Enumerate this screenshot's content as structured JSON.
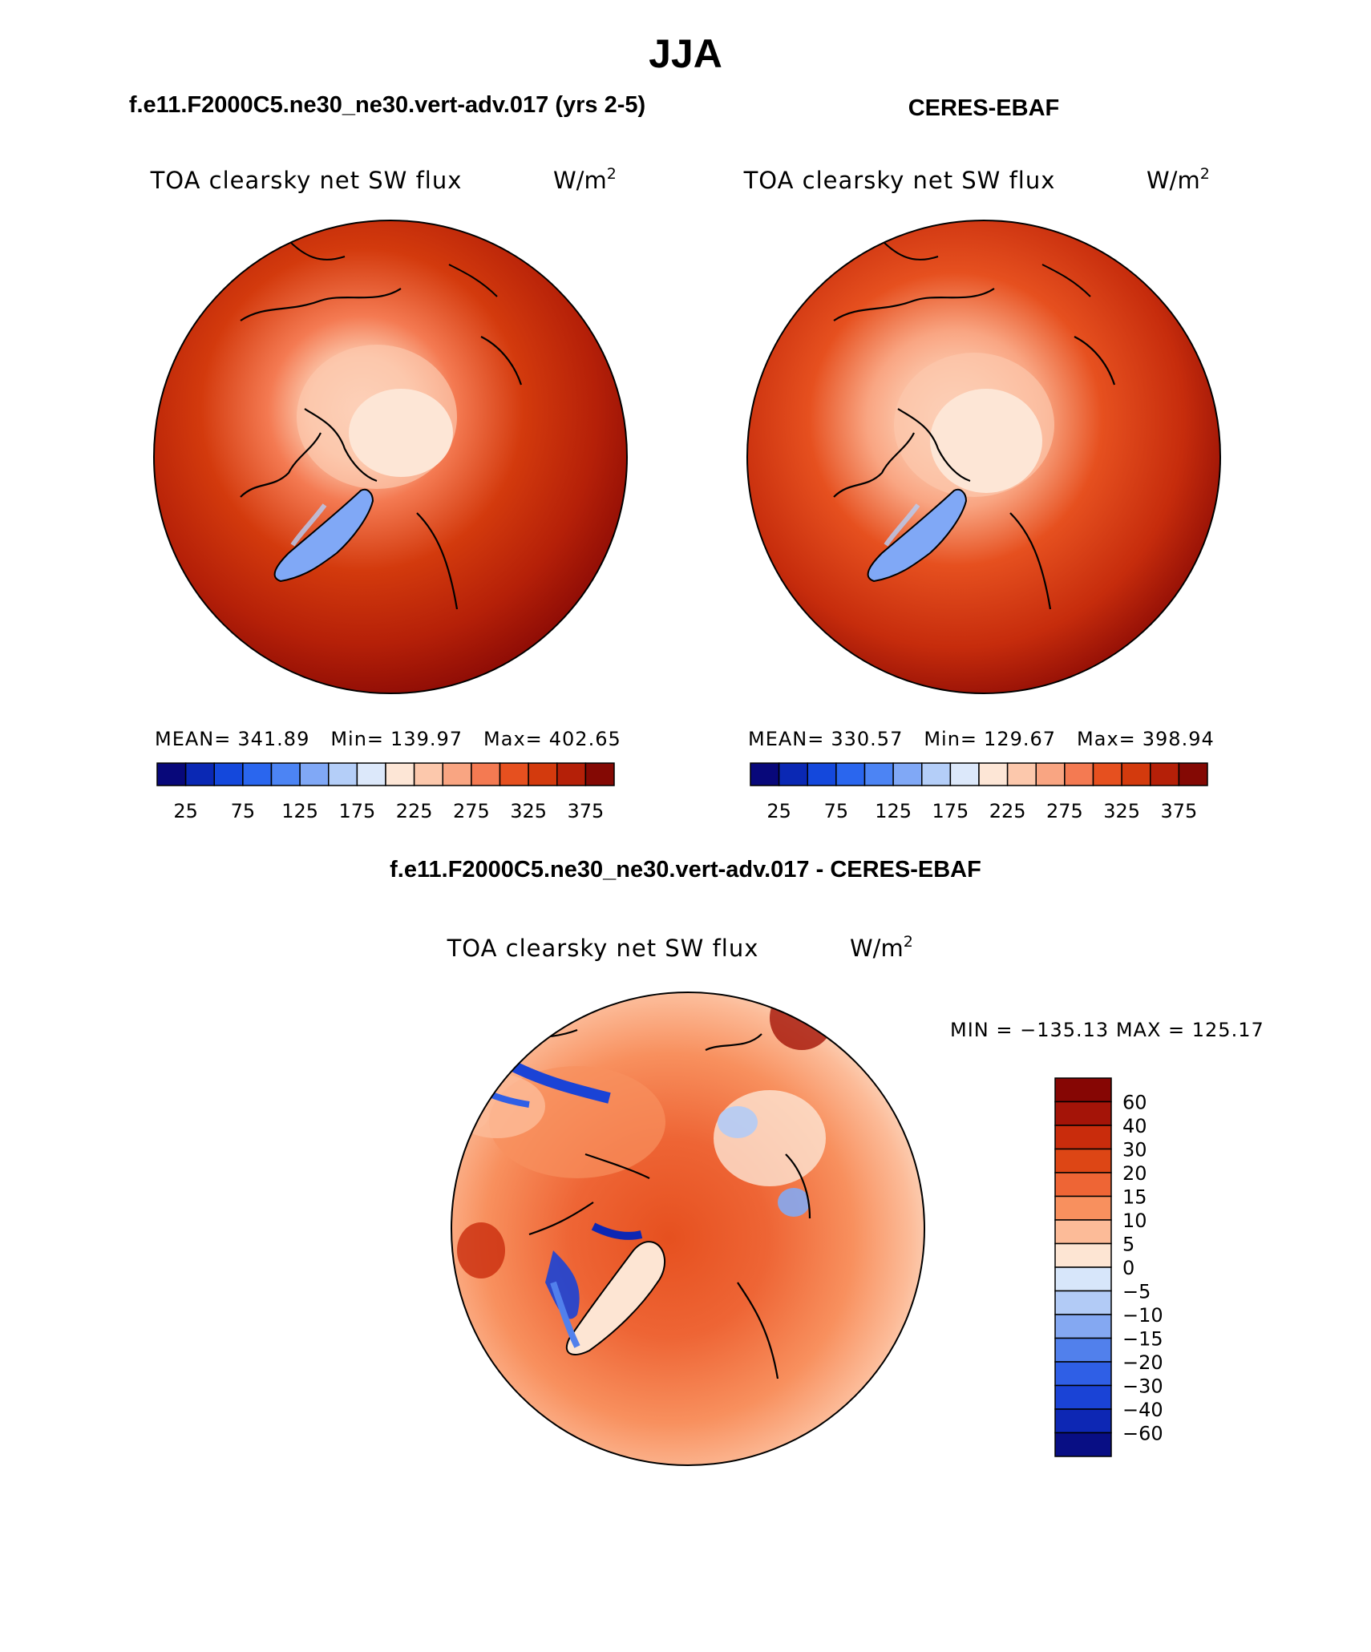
{
  "figure_title": "JJA",
  "chart_data": [
    {
      "type": "heatmap",
      "projection": "north-polar-stereographic",
      "panel_title": "f.e11.F2000C5.ne30_ne30.vert-adv.017 (yrs 2-5)",
      "variable": "TOA clearsky net SW flux",
      "units_base": "W/m",
      "units_exp": "2",
      "stats": {
        "mean_label": "MEAN=",
        "mean": "341.89",
        "min_label": "Min=",
        "min": "139.97",
        "max_label": "Max=",
        "max": "402.65"
      },
      "colorbar": {
        "orientation": "horizontal",
        "levels": [
          25,
          50,
          75,
          100,
          125,
          150,
          175,
          200,
          225,
          250,
          275,
          300,
          325,
          350,
          375
        ],
        "tick_labels": [
          "25",
          "75",
          "125",
          "175",
          "225",
          "275",
          "325",
          "375"
        ]
      }
    },
    {
      "type": "heatmap",
      "projection": "north-polar-stereographic",
      "panel_title": "CERES-EBAF",
      "variable": "TOA clearsky net SW flux",
      "units_base": "W/m",
      "units_exp": "2",
      "stats": {
        "mean_label": "MEAN=",
        "mean": "330.57",
        "min_label": "Min=",
        "min": "129.67",
        "max_label": "Max=",
        "max": "398.94"
      },
      "colorbar": {
        "orientation": "horizontal",
        "levels": [
          25,
          50,
          75,
          100,
          125,
          150,
          175,
          200,
          225,
          250,
          275,
          300,
          325,
          350,
          375
        ],
        "tick_labels": [
          "25",
          "75",
          "125",
          "175",
          "225",
          "275",
          "325",
          "375"
        ]
      }
    },
    {
      "type": "heatmap",
      "projection": "north-polar-stereographic",
      "panel_title": "f.e11.F2000C5.ne30_ne30.vert-adv.017 - CERES-EBAF",
      "variable": "TOA clearsky net SW flux",
      "units_base": "W/m",
      "units_exp": "2",
      "stats_text": "MIN = −135.13 MAX = 125.17",
      "stats": {
        "min": -135.13,
        "max": 125.17
      },
      "colorbar": {
        "orientation": "vertical",
        "levels": [
          60,
          40,
          30,
          20,
          15,
          10,
          5,
          0,
          -5,
          -10,
          -15,
          -20,
          -30,
          -40,
          -60
        ],
        "tick_labels": [
          "60",
          "40",
          "30",
          "20",
          "15",
          "10",
          "5",
          "0",
          "−5",
          "−10",
          "−15",
          "−20",
          "−30",
          "−40",
          "−60"
        ]
      }
    }
  ],
  "palettes": {
    "absolute": [
      "#08087a",
      "#0a28b4",
      "#1448dc",
      "#2a66ee",
      "#4c84f4",
      "#80a8f6",
      "#b4cef8",
      "#dce8fa",
      "#fde6d6",
      "#fcc8ac",
      "#f9a582",
      "#f47a52",
      "#e6501f",
      "#d33a0d",
      "#b52008",
      "#840904"
    ],
    "difference": [
      "#860604",
      "#a41408",
      "#c92c0c",
      "#dd4615",
      "#ee6535",
      "#f8905e",
      "#fcbb98",
      "#fde5d3",
      "#d7e6fa",
      "#b2cbf6",
      "#84a8f2",
      "#5180ec",
      "#2f5fe6",
      "#1a43d6",
      "#0d27b4",
      "#080e84"
    ]
  }
}
